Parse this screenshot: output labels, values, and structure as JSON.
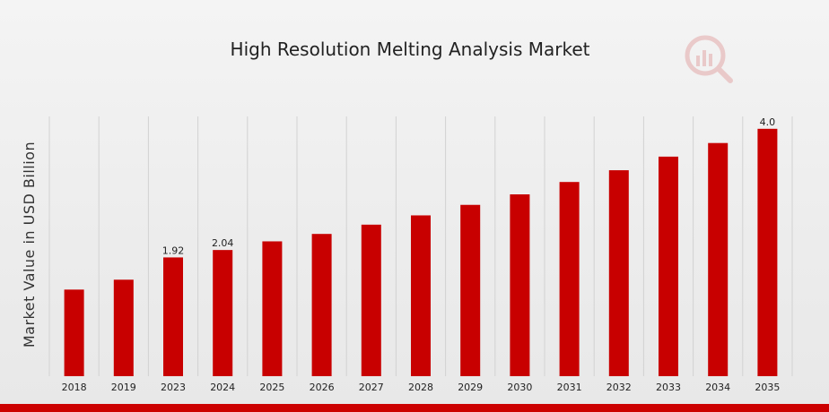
{
  "chart_data": {
    "type": "bar",
    "title": "High Resolution Melting Analysis Market",
    "xlabel": "",
    "ylabel": "Market Value in USD Billion",
    "categories": [
      "2018",
      "2019",
      "2023",
      "2024",
      "2025",
      "2026",
      "2027",
      "2028",
      "2029",
      "2030",
      "2031",
      "2032",
      "2033",
      "2034",
      "2035"
    ],
    "values": [
      1.4,
      1.56,
      1.92,
      2.04,
      2.18,
      2.3,
      2.45,
      2.6,
      2.77,
      2.94,
      3.14,
      3.33,
      3.55,
      3.77,
      4.0
    ],
    "data_labels": {
      "2023": "1.92",
      "2024": "2.04",
      "2035": "4.0"
    },
    "ylim": [
      0,
      4.2
    ],
    "grid": {
      "x": true,
      "y": false
    },
    "bar_color": "#c80000"
  },
  "branding": {
    "logo_icon": "market-research-logo-icon",
    "accent_color": "#cc0000"
  }
}
